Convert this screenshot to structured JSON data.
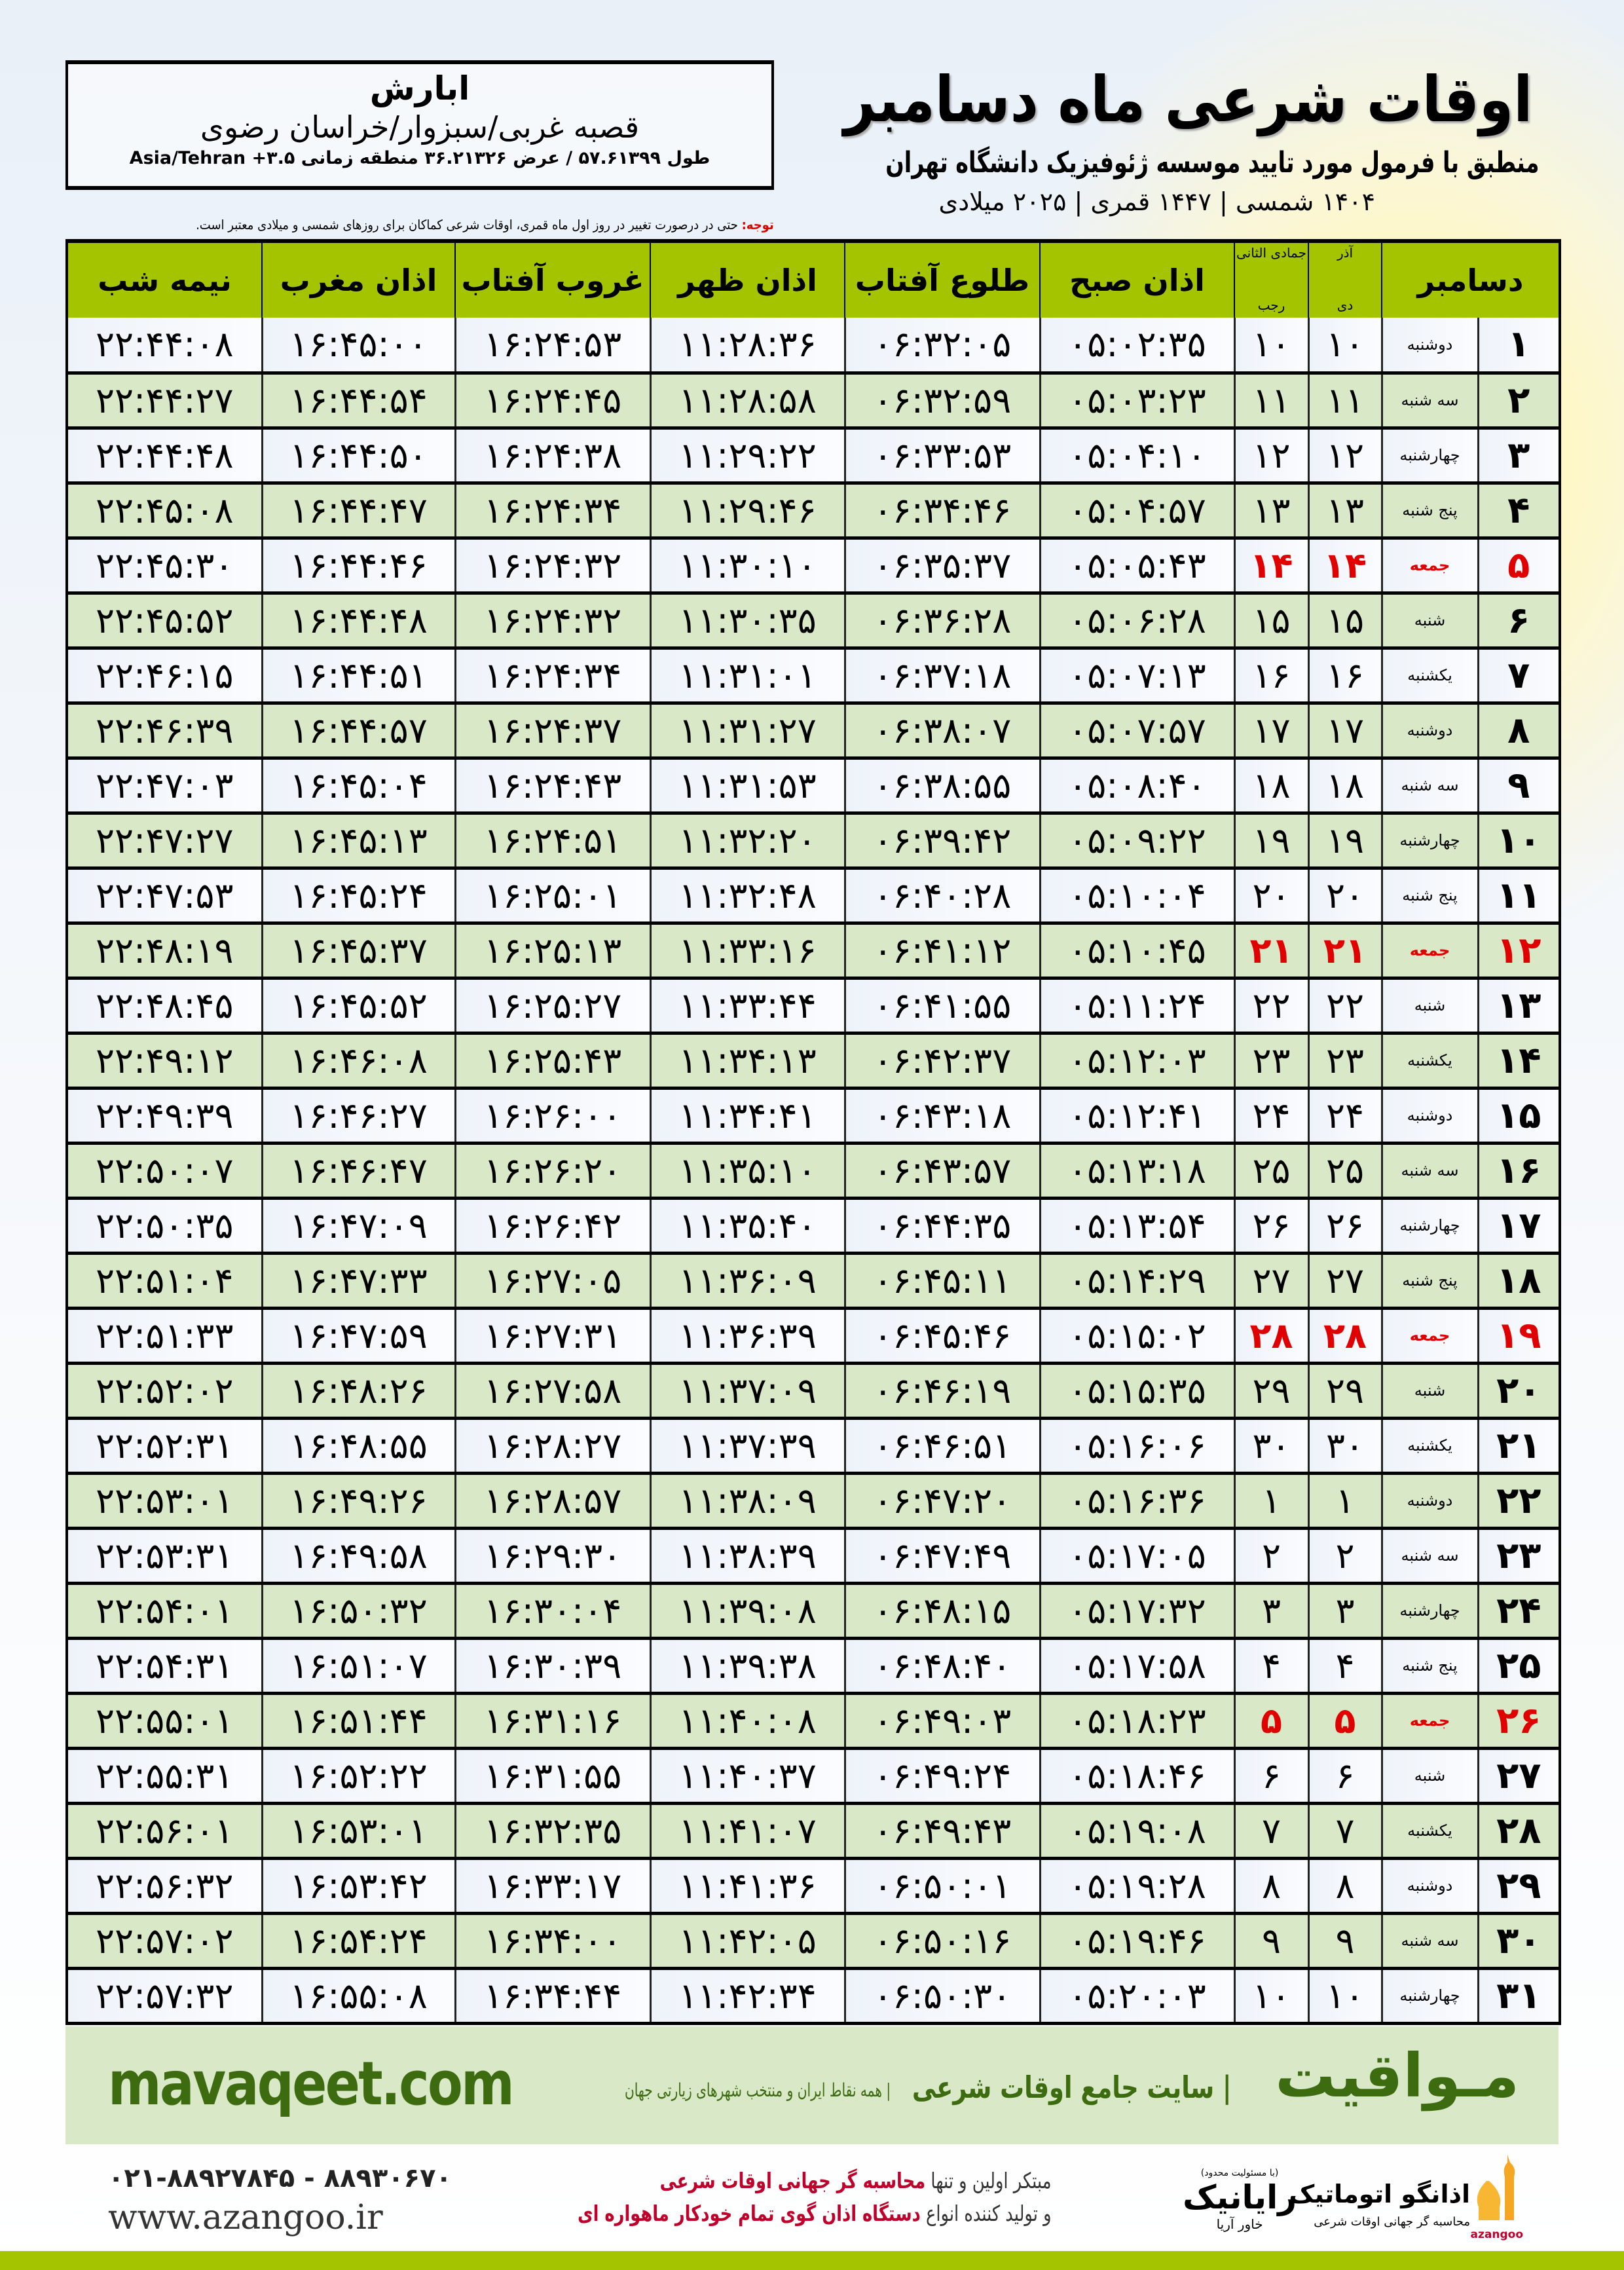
{
  "header": {
    "title": "اوقات شرعی ماه دسامبر",
    "subtitle": "منطبق با فرمول مورد تایید موسسه ژئوفیزیک دانشگاه تهران",
    "dates": "۱۴۰۴ شمسی | ۱۴۴۷ قمری | ۲۰۲۵ میلادی",
    "note_label": "توجه:",
    "note_text": " حتی در درصورت تغییر در روز اول ماه قمری، اوقات شرعی کماکان برای روزهای شمسی و میلادی معتبر است."
  },
  "location": {
    "city": "ابارش",
    "region": "قصبه غربی/سبزوار/خراسان رضوی",
    "coords": "طول ۵۷.۶۱۳۹۹ / عرض ۳۶.۲۱۳۲۶ منطقه زمانی ۳.۵+ Asia/Tehran"
  },
  "table": {
    "headers": {
      "day": "دسامبر",
      "dey_top": "آذر",
      "dey": "دی",
      "rajab_top": "جمادی الثانی",
      "rajab": "رجب",
      "fajr": "اذان صبح",
      "sunrise": "طلوع آفتاب",
      "dhuhr": "اذان ظهر",
      "sunset": "غروب آفتاب",
      "maghrib": "اذان مغرب",
      "midnight": "نیمه شب"
    },
    "friday_color": "#e00000",
    "header_color": "#a5c400",
    "rows": [
      [
        "۱",
        "دوشنبه",
        "۱۰",
        "۱۰",
        "۰۵:۰۲:۳۵",
        "۰۶:۳۲:۰۵",
        "۱۱:۲۸:۳۶",
        "۱۶:۲۴:۵۳",
        "۱۶:۴۵:۰۰",
        "۲۲:۴۴:۰۸"
      ],
      [
        "۲",
        "سه شنبه",
        "۱۱",
        "۱۱",
        "۰۵:۰۳:۲۳",
        "۰۶:۳۲:۵۹",
        "۱۱:۲۸:۵۸",
        "۱۶:۲۴:۴۵",
        "۱۶:۴۴:۵۴",
        "۲۲:۴۴:۲۷"
      ],
      [
        "۳",
        "چهارشنبه",
        "۱۲",
        "۱۲",
        "۰۵:۰۴:۱۰",
        "۰۶:۳۳:۵۳",
        "۱۱:۲۹:۲۲",
        "۱۶:۲۴:۳۸",
        "۱۶:۴۴:۵۰",
        "۲۲:۴۴:۴۸"
      ],
      [
        "۴",
        "پنج شنبه",
        "۱۳",
        "۱۳",
        "۰۵:۰۴:۵۷",
        "۰۶:۳۴:۴۶",
        "۱۱:۲۹:۴۶",
        "۱۶:۲۴:۳۴",
        "۱۶:۴۴:۴۷",
        "۲۲:۴۵:۰۸"
      ],
      [
        "۵",
        "جمعه",
        "۱۴",
        "۱۴",
        "۰۵:۰۵:۴۳",
        "۰۶:۳۵:۳۷",
        "۱۱:۳۰:۱۰",
        "۱۶:۲۴:۳۲",
        "۱۶:۴۴:۴۶",
        "۲۲:۴۵:۳۰"
      ],
      [
        "۶",
        "شنبه",
        "۱۵",
        "۱۵",
        "۰۵:۰۶:۲۸",
        "۰۶:۳۶:۲۸",
        "۱۱:۳۰:۳۵",
        "۱۶:۲۴:۳۲",
        "۱۶:۴۴:۴۸",
        "۲۲:۴۵:۵۲"
      ],
      [
        "۷",
        "یکشنبه",
        "۱۶",
        "۱۶",
        "۰۵:۰۷:۱۳",
        "۰۶:۳۷:۱۸",
        "۱۱:۳۱:۰۱",
        "۱۶:۲۴:۳۴",
        "۱۶:۴۴:۵۱",
        "۲۲:۴۶:۱۵"
      ],
      [
        "۸",
        "دوشنبه",
        "۱۷",
        "۱۷",
        "۰۵:۰۷:۵۷",
        "۰۶:۳۸:۰۷",
        "۱۱:۳۱:۲۷",
        "۱۶:۲۴:۳۷",
        "۱۶:۴۴:۵۷",
        "۲۲:۴۶:۳۹"
      ],
      [
        "۹",
        "سه شنبه",
        "۱۸",
        "۱۸",
        "۰۵:۰۸:۴۰",
        "۰۶:۳۸:۵۵",
        "۱۱:۳۱:۵۳",
        "۱۶:۲۴:۴۳",
        "۱۶:۴۵:۰۴",
        "۲۲:۴۷:۰۳"
      ],
      [
        "۱۰",
        "چهارشنبه",
        "۱۹",
        "۱۹",
        "۰۵:۰۹:۲۲",
        "۰۶:۳۹:۴۲",
        "۱۱:۳۲:۲۰",
        "۱۶:۲۴:۵۱",
        "۱۶:۴۵:۱۳",
        "۲۲:۴۷:۲۷"
      ],
      [
        "۱۱",
        "پنج شنبه",
        "۲۰",
        "۲۰",
        "۰۵:۱۰:۰۴",
        "۰۶:۴۰:۲۸",
        "۱۱:۳۲:۴۸",
        "۱۶:۲۵:۰۱",
        "۱۶:۴۵:۲۴",
        "۲۲:۴۷:۵۳"
      ],
      [
        "۱۲",
        "جمعه",
        "۲۱",
        "۲۱",
        "۰۵:۱۰:۴۵",
        "۰۶:۴۱:۱۲",
        "۱۱:۳۳:۱۶",
        "۱۶:۲۵:۱۳",
        "۱۶:۴۵:۳۷",
        "۲۲:۴۸:۱۹"
      ],
      [
        "۱۳",
        "شنبه",
        "۲۲",
        "۲۲",
        "۰۵:۱۱:۲۴",
        "۰۶:۴۱:۵۵",
        "۱۱:۳۳:۴۴",
        "۱۶:۲۵:۲۷",
        "۱۶:۴۵:۵۲",
        "۲۲:۴۸:۴۵"
      ],
      [
        "۱۴",
        "یکشنبه",
        "۲۳",
        "۲۳",
        "۰۵:۱۲:۰۳",
        "۰۶:۴۲:۳۷",
        "۱۱:۳۴:۱۳",
        "۱۶:۲۵:۴۳",
        "۱۶:۴۶:۰۸",
        "۲۲:۴۹:۱۲"
      ],
      [
        "۱۵",
        "دوشنبه",
        "۲۴",
        "۲۴",
        "۰۵:۱۲:۴۱",
        "۰۶:۴۳:۱۸",
        "۱۱:۳۴:۴۱",
        "۱۶:۲۶:۰۰",
        "۱۶:۴۶:۲۷",
        "۲۲:۴۹:۳۹"
      ],
      [
        "۱۶",
        "سه شنبه",
        "۲۵",
        "۲۵",
        "۰۵:۱۳:۱۸",
        "۰۶:۴۳:۵۷",
        "۱۱:۳۵:۱۰",
        "۱۶:۲۶:۲۰",
        "۱۶:۴۶:۴۷",
        "۲۲:۵۰:۰۷"
      ],
      [
        "۱۷",
        "چهارشنبه",
        "۲۶",
        "۲۶",
        "۰۵:۱۳:۵۴",
        "۰۶:۴۴:۳۵",
        "۱۱:۳۵:۴۰",
        "۱۶:۲۶:۴۲",
        "۱۶:۴۷:۰۹",
        "۲۲:۵۰:۳۵"
      ],
      [
        "۱۸",
        "پنج شنبه",
        "۲۷",
        "۲۷",
        "۰۵:۱۴:۲۹",
        "۰۶:۴۵:۱۱",
        "۱۱:۳۶:۰۹",
        "۱۶:۲۷:۰۵",
        "۱۶:۴۷:۳۳",
        "۲۲:۵۱:۰۴"
      ],
      [
        "۱۹",
        "جمعه",
        "۲۸",
        "۲۸",
        "۰۵:۱۵:۰۲",
        "۰۶:۴۵:۴۶",
        "۱۱:۳۶:۳۹",
        "۱۶:۲۷:۳۱",
        "۱۶:۴۷:۵۹",
        "۲۲:۵۱:۳۳"
      ],
      [
        "۲۰",
        "شنبه",
        "۲۹",
        "۲۹",
        "۰۵:۱۵:۳۵",
        "۰۶:۴۶:۱۹",
        "۱۱:۳۷:۰۹",
        "۱۶:۲۷:۵۸",
        "۱۶:۴۸:۲۶",
        "۲۲:۵۲:۰۲"
      ],
      [
        "۲۱",
        "یکشنبه",
        "۳۰",
        "۳۰",
        "۰۵:۱۶:۰۶",
        "۰۶:۴۶:۵۱",
        "۱۱:۳۷:۳۹",
        "۱۶:۲۸:۲۷",
        "۱۶:۴۸:۵۵",
        "۲۲:۵۲:۳۱"
      ],
      [
        "۲۲",
        "دوشنبه",
        "۱",
        "۱",
        "۰۵:۱۶:۳۶",
        "۰۶:۴۷:۲۰",
        "۱۱:۳۸:۰۹",
        "۱۶:۲۸:۵۷",
        "۱۶:۴۹:۲۶",
        "۲۲:۵۳:۰۱"
      ],
      [
        "۲۳",
        "سه شنبه",
        "۲",
        "۲",
        "۰۵:۱۷:۰۵",
        "۰۶:۴۷:۴۹",
        "۱۱:۳۸:۳۹",
        "۱۶:۲۹:۳۰",
        "۱۶:۴۹:۵۸",
        "۲۲:۵۳:۳۱"
      ],
      [
        "۲۴",
        "چهارشنبه",
        "۳",
        "۳",
        "۰۵:۱۷:۳۲",
        "۰۶:۴۸:۱۵",
        "۱۱:۳۹:۰۸",
        "۱۶:۳۰:۰۴",
        "۱۶:۵۰:۳۲",
        "۲۲:۵۴:۰۱"
      ],
      [
        "۲۵",
        "پنج شنبه",
        "۴",
        "۴",
        "۰۵:۱۷:۵۸",
        "۰۶:۴۸:۴۰",
        "۱۱:۳۹:۳۸",
        "۱۶:۳۰:۳۹",
        "۱۶:۵۱:۰۷",
        "۲۲:۵۴:۳۱"
      ],
      [
        "۲۶",
        "جمعه",
        "۵",
        "۵",
        "۰۵:۱۸:۲۳",
        "۰۶:۴۹:۰۳",
        "۱۱:۴۰:۰۸",
        "۱۶:۳۱:۱۶",
        "۱۶:۵۱:۴۴",
        "۲۲:۵۵:۰۱"
      ],
      [
        "۲۷",
        "شنبه",
        "۶",
        "۶",
        "۰۵:۱۸:۴۶",
        "۰۶:۴۹:۲۴",
        "۱۱:۴۰:۳۷",
        "۱۶:۳۱:۵۵",
        "۱۶:۵۲:۲۲",
        "۲۲:۵۵:۳۱"
      ],
      [
        "۲۸",
        "یکشنبه",
        "۷",
        "۷",
        "۰۵:۱۹:۰۸",
        "۰۶:۴۹:۴۳",
        "۱۱:۴۱:۰۷",
        "۱۶:۳۲:۳۵",
        "۱۶:۵۳:۰۱",
        "۲۲:۵۶:۰۱"
      ],
      [
        "۲۹",
        "دوشنبه",
        "۸",
        "۸",
        "۰۵:۱۹:۲۸",
        "۰۶:۵۰:۰۱",
        "۱۱:۴۱:۳۶",
        "۱۶:۳۳:۱۷",
        "۱۶:۵۳:۴۲",
        "۲۲:۵۶:۳۲"
      ],
      [
        "۳۰",
        "سه شنبه",
        "۹",
        "۹",
        "۰۵:۱۹:۴۶",
        "۰۶:۵۰:۱۶",
        "۱۱:۴۲:۰۵",
        "۱۶:۳۴:۰۰",
        "۱۶:۵۴:۲۴",
        "۲۲:۵۷:۰۲"
      ],
      [
        "۳۱",
        "چهارشنبه",
        "۱۰",
        "۱۰",
        "۰۵:۲۰:۰۳",
        "۰۶:۵۰:۳۰",
        "۱۱:۴۲:۳۴",
        "۱۶:۳۴:۴۴",
        "۱۶:۵۵:۰۸",
        "۲۲:۵۷:۳۲"
      ]
    ]
  },
  "footer": {
    "site": "mavaqeet.com",
    "brand": "مـواقیت",
    "tagline": "| سایت جامع اوقات شرعی",
    "tagline2": "| همه نقاط ایران و منتخب شهرهای زیارتی جهان",
    "phone": "۰۲۱-۸۸۹۲۷۸۴۵ - ۸۸۹۳۰۶۷۰",
    "web": "www.azangoo.ir",
    "promo1_a": "مبتکر اولین و تنها ",
    "promo1_b": "محاسبه گر جهانی اوقات شرعی",
    "promo2_a": "و تولید کننده انواع ",
    "promo2_b": "دستگاه اذان گوی تمام خودکار ماهواره ای",
    "rayanik_small": "(با مسئولیت محدود)",
    "rayanik_name": "رایانیک",
    "rayanik_sub": "خاور آریا",
    "azangoo_name": "اذانگو اتوماتیک",
    "azangoo_desc": "محاسبه گر جهانی اوقات شرعی",
    "azangoo_en": "azangoo",
    "accent_green": "#3d6b10",
    "accent_red": "#c0002a"
  }
}
